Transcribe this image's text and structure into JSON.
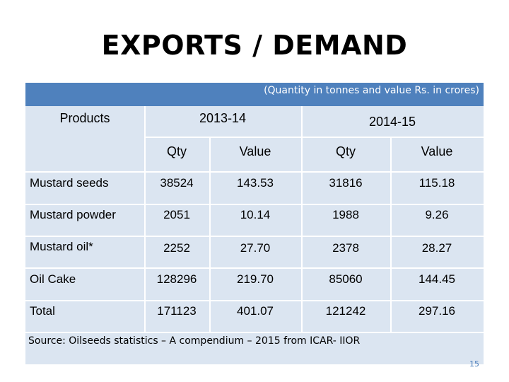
{
  "title": "EXPORTS / DEMAND",
  "units_note": "(Quantity in tonnes and value Rs. in crores)",
  "header": {
    "products": "Products",
    "year1": "2013-14",
    "year2": "2014-15",
    "qty": "Qty",
    "value": "Value"
  },
  "rows": [
    {
      "product": "Mustard seeds",
      "qty1": "38524",
      "val1": "143.53",
      "qty2": "31816",
      "val2": "115.18"
    },
    {
      "product": "Mustard powder",
      "qty1": "2051",
      "val1": "10.14",
      "qty2": "1988",
      "val2": "9.26"
    },
    {
      "product": "Mustard oil*",
      "qty1": "2252",
      "val1": "27.70",
      "qty2": "2378",
      "val2": "28.27"
    },
    {
      "product": "Oil Cake",
      "qty1": "128296",
      "val1": "219.70",
      "qty2": "85060",
      "val2": "144.45"
    },
    {
      "product": "Total",
      "qty1": "171123",
      "val1": "401.07",
      "qty2": "121242",
      "val2": "297.16"
    }
  ],
  "source": "Source: Oilseeds statistics – A compendium – 2015 from ICAR- IIOR",
  "page_number": "15",
  "colors": {
    "band": "#4f81bd",
    "cell": "#dbe5f1"
  }
}
